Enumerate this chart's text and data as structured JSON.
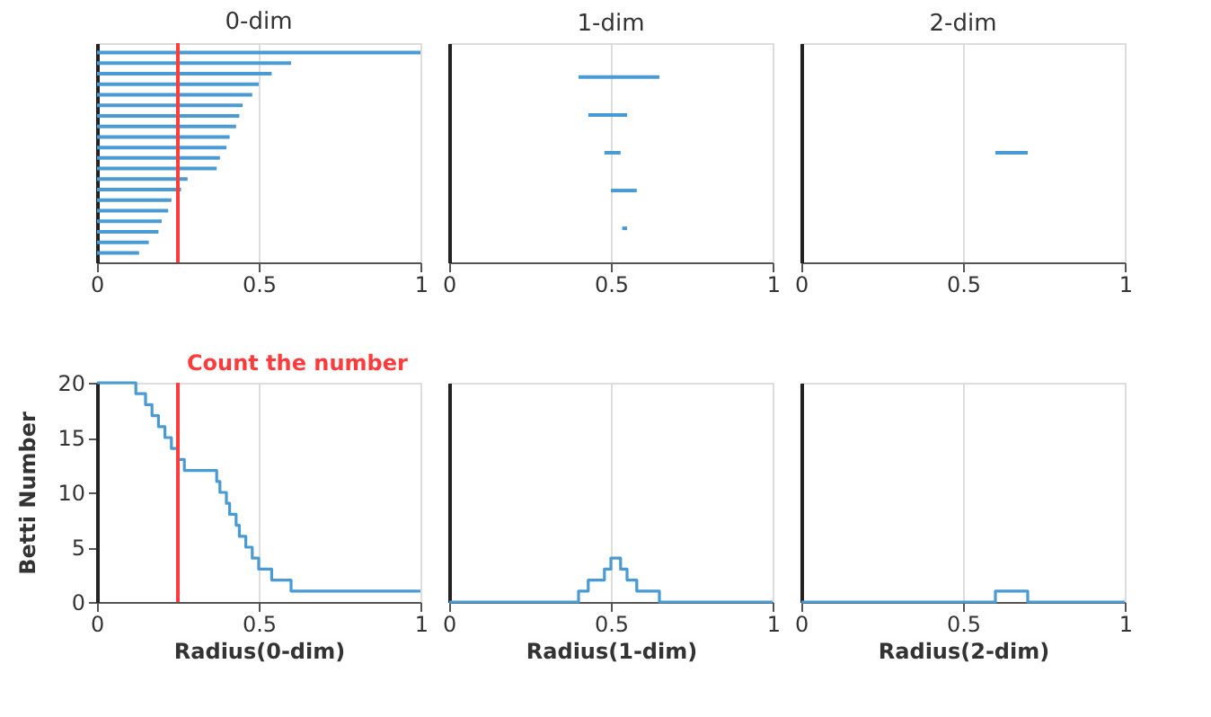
{
  "chart_data": [
    {
      "type": "bar",
      "orientation": "horizontal",
      "title": "0-dim",
      "categories": [
        null,
        null,
        null,
        null,
        null,
        null,
        null,
        null,
        null,
        null,
        null,
        null,
        null,
        null,
        null,
        null,
        null,
        null,
        null,
        null
      ],
      "values": [
        1,
        0.6,
        0.54,
        0.5,
        0.48,
        0.45,
        0.44,
        0.43,
        0.41,
        0.4,
        0.38,
        0.37,
        0.28,
        0.26,
        0.23,
        0.22,
        0.2,
        0.19,
        0.16,
        0.13
      ],
      "color": "#4a9ad4",
      "xlim": [
        0,
        1
      ],
      "xticks": [
        0,
        0.5,
        1
      ],
      "grid": "x",
      "ref_lines": [
        {
          "axis": "x",
          "value": 0.25,
          "color": "#ff3b3b"
        }
      ]
    },
    {
      "type": "bar",
      "orientation": "horizontal",
      "title": "1-dim",
      "categories": [
        null,
        null,
        null,
        null,
        null
      ],
      "base": [
        0.4,
        0.43,
        0.48,
        0.5,
        0.535
      ],
      "values": [
        0.25,
        0.12,
        0.05,
        0.08,
        0.015
      ],
      "color": "#4a9ad4",
      "xlim": [
        0,
        1
      ],
      "xticks": [
        0,
        0.5,
        1
      ],
      "grid": "x"
    },
    {
      "type": "bar",
      "orientation": "horizontal",
      "title": "2-dim",
      "categories": [
        null,
        null,
        null,
        null,
        null
      ],
      "values": [
        null,
        null,
        0.1,
        null,
        null
      ],
      "base": [
        null,
        null,
        0.6,
        null,
        null
      ],
      "color": "#4a9ad4",
      "xlim": [
        0,
        1
      ],
      "xticks": [
        0,
        0.5,
        1
      ],
      "grid": "x"
    },
    {
      "type": "step",
      "xlabel": "Radius(0-dim)",
      "ylabel": "Betti Number",
      "x": [
        0,
        0.12,
        0.15,
        0.17,
        0.19,
        0.21,
        0.23,
        0.25,
        0.27,
        0.37,
        0.38,
        0.4,
        0.41,
        0.43,
        0.44,
        0.46,
        0.48,
        0.5,
        0.54,
        0.6,
        1
      ],
      "values": [
        20,
        19,
        18,
        17,
        16,
        15,
        14,
        13,
        12,
        11,
        10,
        9,
        8,
        7,
        6,
        5,
        4,
        3,
        2,
        1,
        1
      ],
      "color": "#4a9ad4",
      "xlim": [
        0,
        1
      ],
      "xticks": [
        0,
        0.5,
        1
      ],
      "ylim": [
        0,
        20
      ],
      "yticks": [
        0,
        5,
        10,
        15,
        20
      ],
      "grid": "x",
      "ref_lines": [
        {
          "axis": "x",
          "value": 0.25,
          "color": "#ff3b3b"
        }
      ],
      "annotations": [
        "Count the number"
      ]
    },
    {
      "type": "step",
      "xlabel": "Radius(1-dim)",
      "x": [
        0,
        0.4,
        0.43,
        0.48,
        0.5,
        0.53,
        0.55,
        0.58,
        0.65,
        1
      ],
      "values": [
        0,
        1,
        2,
        3,
        4,
        3,
        2,
        1,
        0,
        0
      ],
      "color": "#4a9ad4",
      "xlim": [
        0,
        1
      ],
      "xticks": [
        0,
        0.5,
        1
      ],
      "ylim": [
        0,
        20
      ],
      "yticks": [
        0,
        5,
        10,
        15,
        20
      ],
      "grid": "x",
      "tick_labels": "x"
    },
    {
      "type": "step",
      "xlabel": "Radius(2-dim)",
      "x": [
        0,
        0.6,
        0.7,
        1
      ],
      "values": [
        0,
        1,
        0,
        0
      ],
      "color": "#4a9ad4",
      "xlim": [
        0,
        1
      ],
      "xticks": [
        0,
        0.5,
        1
      ],
      "ylim": [
        0,
        20
      ],
      "yticks": [
        0,
        5,
        10,
        15,
        20
      ],
      "grid": "x",
      "tick_labels": "x"
    }
  ]
}
